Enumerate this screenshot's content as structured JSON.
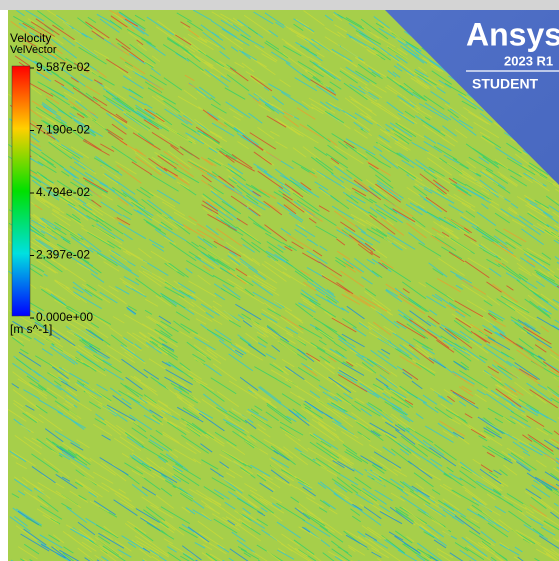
{
  "legend": {
    "title": "Velocity",
    "variable": "VelVector",
    "ticks": [
      "9.587e-02",
      "7.190e-02",
      "4.794e-02",
      "2.397e-02",
      "0.000e+00"
    ],
    "unit": "[m s^-1]"
  },
  "watermark": {
    "brand": "Ansys",
    "version": "2023 R1",
    "edition": "STUDENT"
  }
}
